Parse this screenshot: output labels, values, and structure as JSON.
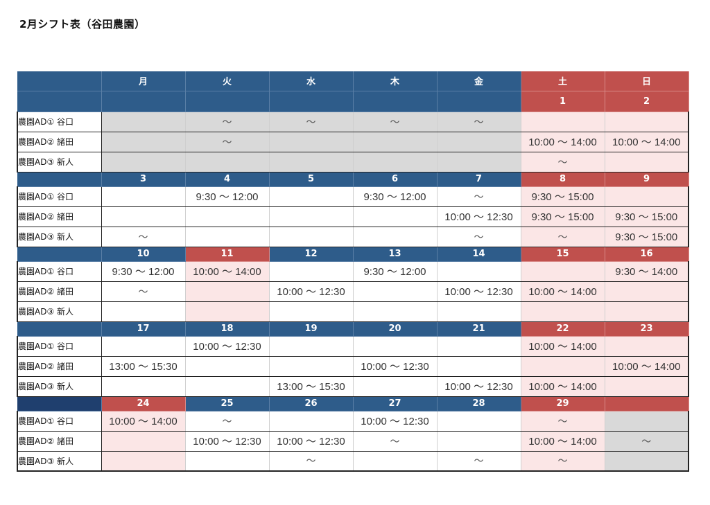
{
  "title": "2月シフト表（谷田農園）",
  "weekdays": [
    "月",
    "火",
    "水",
    "木",
    "金",
    "土",
    "日"
  ],
  "weekend_cols": [
    5,
    6
  ],
  "staff": [
    "農園AD① 谷口",
    "農園AD② 諸田",
    "農園AD③ 新人"
  ],
  "colors": {
    "weekday_header": "#2e5c8a",
    "weekend_header": "#c0504d",
    "gray_cell": "#d9d9d9",
    "pink_cell": "#fbe6e6"
  },
  "weeks": [
    {
      "header_first": true,
      "dates": [
        "",
        "",
        "",
        "",
        "",
        "1",
        "2"
      ],
      "date_bg": [
        "blue",
        "blue",
        "blue",
        "blue",
        "blue",
        "red",
        "red"
      ],
      "rows": [
        {
          "cells": [
            "",
            "～",
            "～",
            "～",
            "～",
            "",
            ""
          ],
          "bg": [
            "gray",
            "gray",
            "gray",
            "gray",
            "gray",
            "pink",
            "pink"
          ]
        },
        {
          "cells": [
            "",
            "～",
            "",
            "",
            "",
            "10:00 ～ 14:00",
            "10:00 ～ 14:00"
          ],
          "bg": [
            "gray",
            "gray",
            "gray",
            "gray",
            "gray",
            "pink",
            "pink"
          ]
        },
        {
          "cells": [
            "",
            "",
            "",
            "",
            "",
            "～",
            ""
          ],
          "bg": [
            "gray",
            "gray",
            "gray",
            "gray",
            "gray",
            "pink",
            "pink"
          ]
        }
      ]
    },
    {
      "dates": [
        "3",
        "4",
        "5",
        "6",
        "7",
        "8",
        "9"
      ],
      "date_bg": [
        "blue",
        "blue",
        "blue",
        "blue",
        "blue",
        "red",
        "red"
      ],
      "rows": [
        {
          "cells": [
            "",
            "9:30 ～ 12:00",
            "",
            "9:30 ～ 12:00",
            "～",
            "9:30 ～ 15:00",
            ""
          ],
          "bg": [
            "white",
            "white",
            "white",
            "white",
            "white",
            "pink",
            "pink"
          ]
        },
        {
          "cells": [
            "",
            "",
            "",
            "",
            "10:00 ～ 12:30",
            "9:30 ～ 15:00",
            "9:30 ～ 15:00"
          ],
          "bg": [
            "white",
            "white",
            "white",
            "white",
            "white",
            "pink",
            "pink"
          ]
        },
        {
          "cells": [
            "～",
            "",
            "",
            "",
            "～",
            "～",
            "9:30 ～ 15:00"
          ],
          "bg": [
            "white",
            "white",
            "white",
            "white",
            "white",
            "pink",
            "pink"
          ]
        }
      ]
    },
    {
      "dates": [
        "10",
        "11",
        "12",
        "13",
        "14",
        "15",
        "16"
      ],
      "date_bg": [
        "blue",
        "red",
        "blue",
        "blue",
        "blue",
        "red",
        "red"
      ],
      "rows": [
        {
          "cells": [
            "9:30 ～ 12:00",
            "10:00 ～ 14:00",
            "",
            "9:30 ～ 12:00",
            "",
            "",
            "9:30 ～ 14:00"
          ],
          "bg": [
            "white",
            "pink",
            "white",
            "white",
            "white",
            "pink",
            "pink"
          ]
        },
        {
          "cells": [
            "～",
            "",
            "10:00 ～ 12:30",
            "",
            "10:00 ～ 12:30",
            "10:00 ～ 14:00",
            ""
          ],
          "bg": [
            "white",
            "pink",
            "white",
            "white",
            "white",
            "pink",
            "pink"
          ]
        },
        {
          "cells": [
            "",
            "",
            "",
            "",
            "",
            "",
            ""
          ],
          "bg": [
            "white",
            "pink",
            "white",
            "white",
            "white",
            "pink",
            "pink"
          ]
        }
      ]
    },
    {
      "dates": [
        "17",
        "18",
        "19",
        "20",
        "21",
        "22",
        "23"
      ],
      "date_bg": [
        "blue",
        "blue",
        "blue",
        "blue",
        "blue",
        "red",
        "red"
      ],
      "rows": [
        {
          "cells": [
            "",
            "10:00 ～ 12:30",
            "",
            "",
            "",
            "10:00 ～ 14:00",
            ""
          ],
          "bg": [
            "white",
            "white",
            "white",
            "white",
            "white",
            "pink",
            "pink"
          ]
        },
        {
          "cells": [
            "13:00 ～ 15:30",
            "",
            "",
            "10:00 ～ 12:30",
            "",
            "",
            "10:00 ～ 14:00"
          ],
          "bg": [
            "white",
            "white",
            "white",
            "white",
            "white",
            "pink",
            "pink"
          ]
        },
        {
          "cells": [
            "",
            "",
            "13:00 ～ 15:30",
            "",
            "10:00 ～ 12:30",
            "10:00 ～ 14:00",
            ""
          ],
          "bg": [
            "white",
            "white",
            "white",
            "white",
            "white",
            "pink",
            "pink"
          ]
        }
      ]
    },
    {
      "dark_corner": true,
      "dates": [
        "24",
        "25",
        "26",
        "27",
        "28",
        "29",
        ""
      ],
      "date_bg": [
        "red",
        "blue",
        "blue",
        "blue",
        "blue",
        "red",
        "red"
      ],
      "rows": [
        {
          "cells": [
            "10:00 ～ 14:00",
            "～",
            "",
            "10:00 ～ 12:30",
            "",
            "～",
            ""
          ],
          "bg": [
            "pink",
            "white",
            "white",
            "white",
            "white",
            "pink",
            "gray"
          ]
        },
        {
          "cells": [
            "",
            "10:00 ～ 12:30",
            "10:00 ～ 12:30",
            "～",
            "",
            "10:00 ～ 14:00",
            "～"
          ],
          "bg": [
            "pink",
            "white",
            "white",
            "white",
            "white",
            "pink",
            "gray"
          ]
        },
        {
          "cells": [
            "",
            "",
            "～",
            "",
            "～",
            "～",
            ""
          ],
          "bg": [
            "pink",
            "white",
            "white",
            "white",
            "white",
            "pink",
            "gray"
          ]
        }
      ]
    }
  ]
}
